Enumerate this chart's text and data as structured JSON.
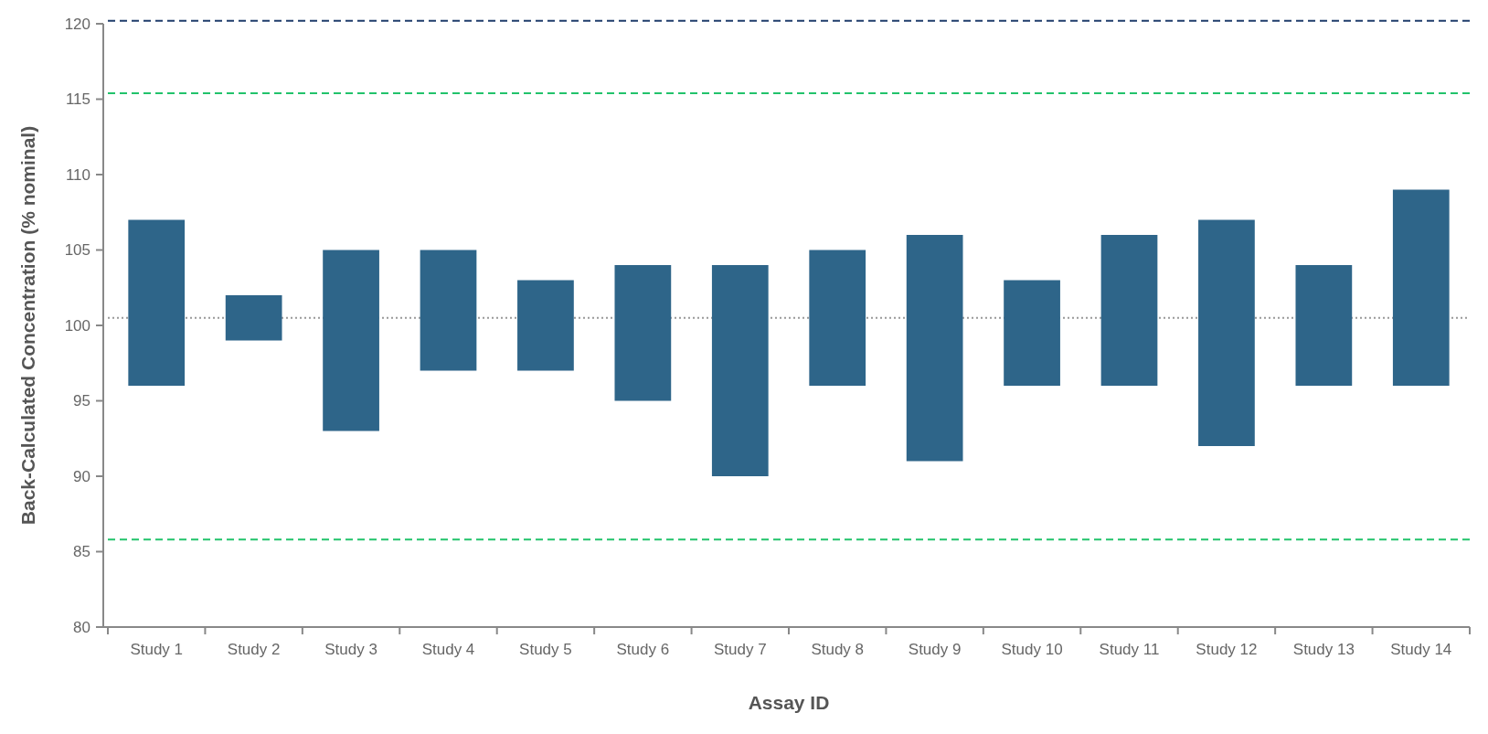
{
  "chart_data": {
    "type": "bar",
    "xlabel": "Assay ID",
    "ylabel": "Back-Calculated Concentration (% nominal)",
    "categories": [
      "Study 1",
      "Study 2",
      "Study 3",
      "Study 4",
      "Study 5",
      "Study 6",
      "Study 7",
      "Study 8",
      "Study 9",
      "Study 10",
      "Study 11",
      "Study 12",
      "Study 13",
      "Study 14"
    ],
    "base": [
      96,
      99,
      93,
      97,
      97,
      95,
      90,
      96,
      91,
      96,
      96,
      92,
      96,
      96
    ],
    "values": [
      11,
      3,
      12,
      8,
      6,
      9,
      14,
      9,
      15,
      7,
      10,
      15,
      8,
      13
    ],
    "color": "#2e6589",
    "ylim": [
      80,
      120
    ],
    "yticks": [
      80,
      85,
      90,
      95,
      100,
      105,
      110,
      115,
      120
    ],
    "grid": false,
    "ref_lines": [
      {
        "axis": "y",
        "value": 120.2,
        "label": null,
        "color": "#1f3d6b",
        "line_style": "dashed"
      },
      {
        "axis": "y",
        "value": 115.4,
        "label": null,
        "color": "#22c36b",
        "line_style": "dashed"
      },
      {
        "axis": "y",
        "value": 100.5,
        "label": null,
        "color": "#999999",
        "line_style": "dotted"
      },
      {
        "axis": "y",
        "value": 85.8,
        "label": null,
        "color": "#22c36b",
        "line_style": "dashed"
      }
    ]
  }
}
